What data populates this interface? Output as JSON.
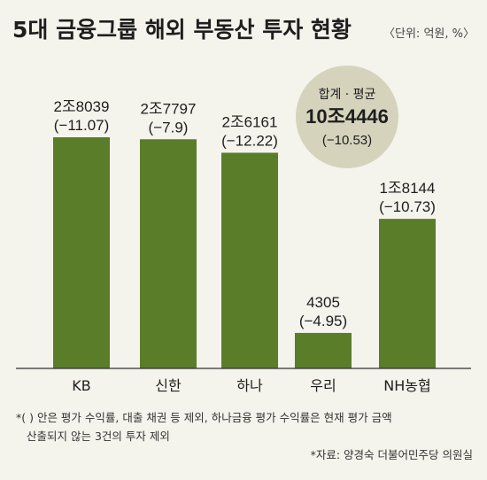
{
  "title": "5대 금융그룹 해외 부동산 투자 현황",
  "unit": "〈단위: 억원, %〉",
  "colors": {
    "bar": "#5a7d2a",
    "background": "#f4f3ec",
    "summary_circle": "#d6d3bd",
    "axis": "#333333"
  },
  "chart_data": {
    "type": "bar",
    "categories": [
      "KB",
      "신한",
      "하나",
      "우리",
      "NH농협"
    ],
    "values": [
      28039,
      27797,
      26161,
      4305,
      18144
    ],
    "value_labels": [
      "2조8039",
      "2조7797",
      "2조6161",
      "4305",
      "1조8144"
    ],
    "change_labels": [
      "(−11.07)",
      "(−7.9)",
      "(−12.22)",
      "(−4.95)",
      "(−10.73)"
    ],
    "ylim": [
      0,
      28039
    ]
  },
  "summary": {
    "label": "합계 · 평균",
    "value": "10조4446",
    "change": "(−10.53)"
  },
  "footnote": {
    "line1": "*(  ) 안은 평가 수익률, 대출 채권 등 제외, 하나금융 평가 수익률은 현재 평가 금액",
    "line2": "산출되지 않는 3건의 투자 제외",
    "source": "*자료: 양경숙 더불어민주당 의원실"
  }
}
